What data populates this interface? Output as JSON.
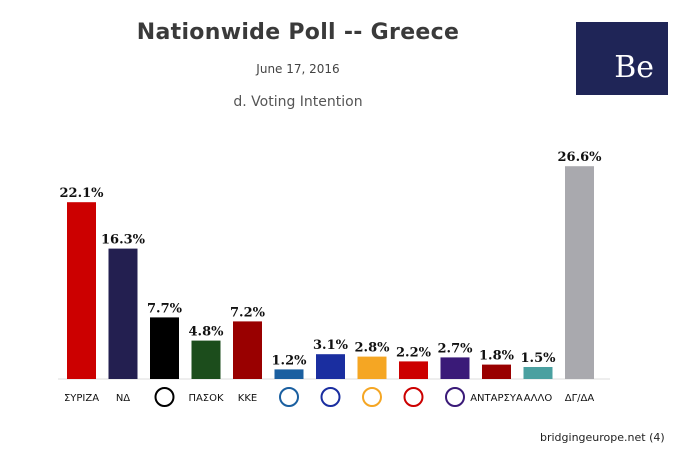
{
  "header": {
    "title": "Nationwide Poll -- Greece",
    "date": "June 17, 2016",
    "subtitle": "d. Voting Intention",
    "logo_text": "Be"
  },
  "footer": {
    "source": "bridgingeurope.net (4)"
  },
  "chart_data": {
    "type": "bar",
    "title": "Nationwide Poll -- Greece",
    "subtitle": "d. Voting Intention",
    "categories": [
      "ΣΥΡΙΖΑ",
      "ΝΔ",
      "",
      "ΠΑΣΟΚ",
      "ΚΚΕ",
      "",
      "",
      "",
      "",
      "",
      "ΑΝΤΑΡΣΥΑ",
      "ΑΛΛΟ",
      "ΔΓ/ΔΑ"
    ],
    "values": [
      22.1,
      16.3,
      7.7,
      4.8,
      7.2,
      1.2,
      3.1,
      2.8,
      2.2,
      2.7,
      1.8,
      1.5,
      26.6
    ],
    "value_labels": [
      "22.1%",
      "16.3%",
      "7.7%",
      "4.8%",
      "7.2%",
      "1.2%",
      "3.1%",
      "2.8%",
      "2.2%",
      "2.7%",
      "1.8%",
      "1.5%",
      "26.6%"
    ],
    "colors": [
      "#cc0000",
      "#231f50",
      "#000000",
      "#1c4d1c",
      "#990000",
      "#1a5fa0",
      "#1a2ea0",
      "#f5a623",
      "#cc0000",
      "#3a1a78",
      "#990000",
      "#4aa0a0",
      "#a9a9ae"
    ],
    "ylim": [
      0,
      28
    ],
    "grid": false,
    "legend": "none"
  }
}
